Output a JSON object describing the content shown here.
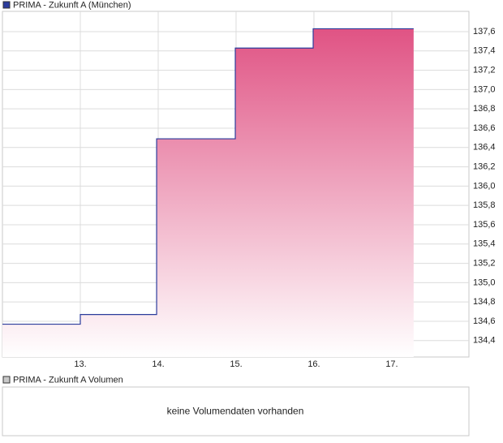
{
  "chart_data": {
    "type": "line",
    "title": "PRIMA - Zukunft A (München)",
    "x": [
      12,
      13,
      13,
      13.98,
      13.98,
      14.99,
      14.99,
      15.99,
      15.99,
      17.28
    ],
    "series": [
      {
        "name": "PRIMA - Zukunft A (München)",
        "color": "#2b3c9c",
        "values": [
          134.57,
          134.57,
          134.67,
          134.67,
          136.49,
          136.49,
          137.43,
          137.43,
          137.63,
          137.63
        ]
      }
    ],
    "fill_color": "#e05384",
    "xlim": [
      12,
      17.99
    ],
    "xticks": [
      {
        "value": 13,
        "label": "13."
      },
      {
        "value": 14,
        "label": "14."
      },
      {
        "value": 15,
        "label": "15."
      },
      {
        "value": 16,
        "label": "16."
      },
      {
        "value": 17,
        "label": "17."
      }
    ],
    "ylim": [
      134.23,
      137.81
    ],
    "yticks": [
      {
        "value": 134.4,
        "label": "134,4"
      },
      {
        "value": 134.6,
        "label": "134,6"
      },
      {
        "value": 134.8,
        "label": "134,8"
      },
      {
        "value": 135.0,
        "label": "135,0"
      },
      {
        "value": 135.2,
        "label": "135,2"
      },
      {
        "value": 135.4,
        "label": "135,4"
      },
      {
        "value": 135.6,
        "label": "135,6"
      },
      {
        "value": 135.8,
        "label": "135,8"
      },
      {
        "value": 136.0,
        "label": "136,0"
      },
      {
        "value": 136.2,
        "label": "136,2"
      },
      {
        "value": 136.4,
        "label": "136,4"
      },
      {
        "value": 136.6,
        "label": "136,6"
      },
      {
        "value": 136.8,
        "label": "136,8"
      },
      {
        "value": 137.0,
        "label": "137,0"
      },
      {
        "value": 137.2,
        "label": "137,2"
      },
      {
        "value": 137.4,
        "label": "137,4"
      },
      {
        "value": 137.6,
        "label": "137,6"
      }
    ],
    "grid": true
  },
  "volume_panel": {
    "title": "PRIMA - Zukunft A Volumen",
    "message": "keine Volumendaten vorhanden"
  }
}
